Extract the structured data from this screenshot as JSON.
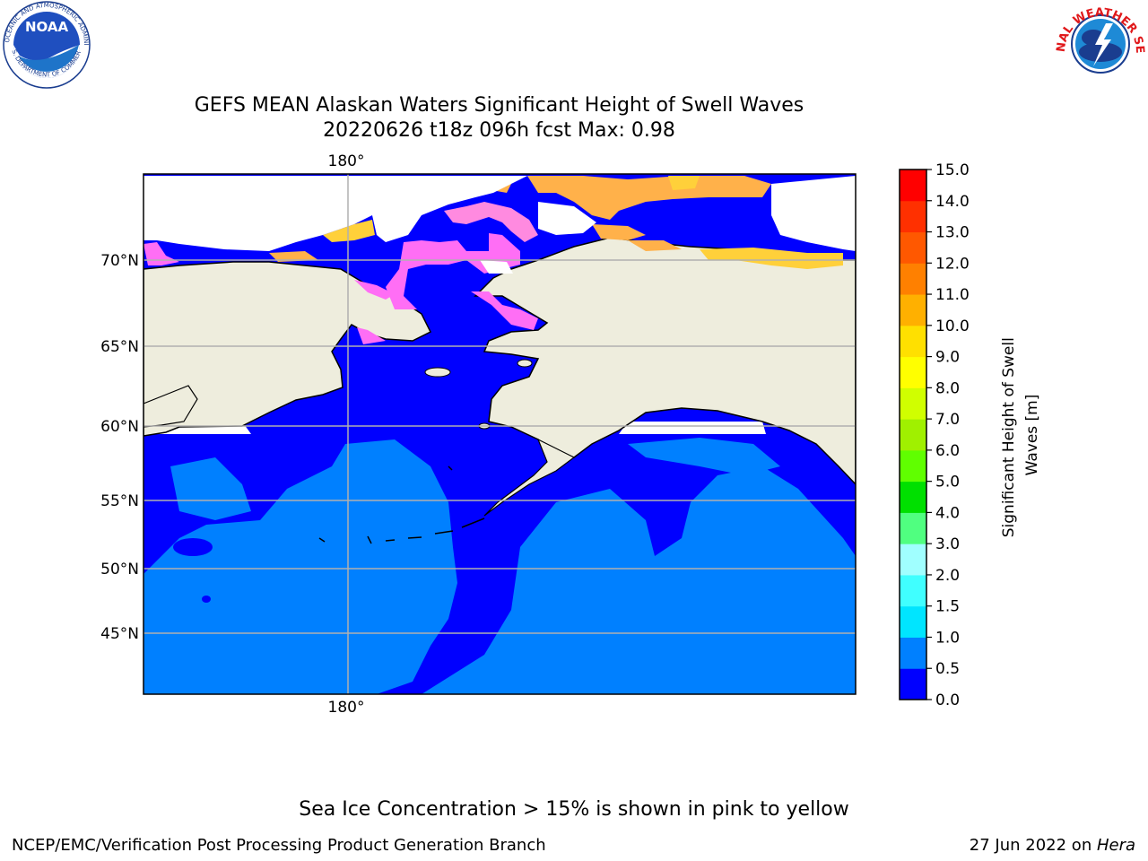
{
  "title": {
    "line1": "GEFS MEAN Alaskan Waters Significant Height of Swell Waves",
    "line2": "20220626 t18z 096h fcst   Max: 0.98"
  },
  "logos": {
    "noaa": {
      "text": "NOAA",
      "ring_text": "NATIONAL OCEANIC AND ATMOSPHERIC ADMINISTRATION",
      "ring_text_bottom": "U.S. DEPARTMENT OF COMMERCE"
    },
    "nws": {
      "ring_text": "NATIONAL WEATHER SERVICE"
    }
  },
  "map": {
    "lon_label": "180°",
    "lat_labels": [
      "70°N",
      "65°N",
      "60°N",
      "55°N",
      "50°N",
      "45°N"
    ],
    "colors": {
      "water_0_05": "#0000ff",
      "water_05_1": "#0080ff",
      "land": "#eeeddd",
      "ice_pink": "#ff6ef5",
      "ice_orange": "#ffb14a",
      "ice_yellow": "#ffd03a",
      "nodata": "#ffffff"
    }
  },
  "colorbar": {
    "label": "Significant Height of Swell Waves [m]",
    "ticks": [
      "0.0",
      "0.5",
      "1.0",
      "1.5",
      "2.0",
      "3.0",
      "4.0",
      "5.0",
      "6.0",
      "7.0",
      "8.0",
      "9.0",
      "10.0",
      "11.0",
      "12.0",
      "13.0",
      "14.0",
      "15.0"
    ],
    "colors": [
      "#0000ff",
      "#0080ff",
      "#00e5ff",
      "#40ffff",
      "#a0ffff",
      "#50ff80",
      "#00e000",
      "#60ff00",
      "#a0f000",
      "#d0ff00",
      "#ffff00",
      "#ffe000",
      "#ffb000",
      "#ff8000",
      "#ff5800",
      "#ff3000",
      "#ff0000"
    ]
  },
  "note": "Sea Ice Concentration > 15% is shown in pink to yellow",
  "footer": {
    "left": "NCEP/EMC/Verification Post Processing Product Generation Branch",
    "right_date": "27 Jun 2022 on ",
    "right_machine": "Hera"
  }
}
